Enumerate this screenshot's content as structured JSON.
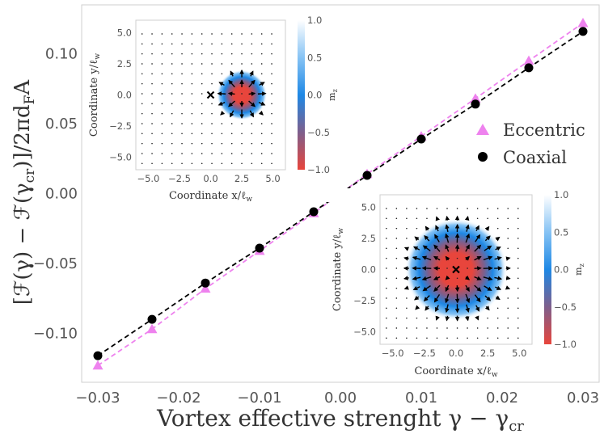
{
  "chart_data": {
    "type": "line",
    "ylabel": "[ℱ(γ) − ℱ(γ_cr)]/2πd_F A",
    "ylabel_parts": {
      "a": "[ℱ(γ) − ℱ(γ",
      "a_sub": "cr",
      "b": ")]/2πd",
      "b_sub": "F",
      "c": "A"
    },
    "xlabel": "Vortex effective strenght γ − γ_cr",
    "xlabel_parts": {
      "a": "Vortex effective strenght γ − γ",
      "a_sub": "cr"
    },
    "xlim": [
      -0.032,
      0.032
    ],
    "ylim": [
      -0.135,
      0.135
    ],
    "xticks": [
      -0.03,
      -0.02,
      -0.01,
      0.0,
      0.01,
      0.02,
      0.03
    ],
    "xtick_labels": [
      "−0.03",
      "−0.02",
      "−0.01",
      "0.00",
      "0.01",
      "0.02",
      "0.03"
    ],
    "yticks": [
      -0.1,
      -0.05,
      0.0,
      0.05,
      0.1
    ],
    "ytick_labels": [
      "−0.10",
      "−0.05",
      "0.00",
      "0.05",
      "0.10"
    ],
    "grid": false,
    "legend_position": "right",
    "x": [
      -0.03,
      -0.0233,
      -0.0167,
      -0.01,
      -0.0033,
      0.0,
      0.0033,
      0.01,
      0.0167,
      0.0233,
      0.03
    ],
    "series": [
      {
        "name": "Eccentric",
        "marker": "triangle",
        "color": "#EE82EE",
        "linestyle": "dashed",
        "values": [
          -0.123,
          -0.097,
          -0.068,
          -0.041,
          -0.014,
          0.0,
          0.014,
          0.041,
          0.068,
          0.095,
          0.122
        ]
      },
      {
        "name": "Coaxial",
        "marker": "circle",
        "color": "#000000",
        "linestyle": "dashed",
        "values": [
          -0.116,
          -0.09,
          -0.064,
          -0.039,
          -0.013,
          0.0,
          0.013,
          0.039,
          0.064,
          0.09,
          0.116
        ]
      }
    ],
    "insets": [
      {
        "name": "eccentric-inset",
        "xlabel": "Coordinate x/ℓ_w",
        "xlabel_parts": {
          "a": "Coordinate x/ℓ",
          "sub": "w"
        },
        "ylabel": "Coordinate y/ℓ_w",
        "ylabel_parts": {
          "a": "Coordinate y/ℓ",
          "sub": "w"
        },
        "xlim": [
          -6,
          6
        ],
        "ylim": [
          -6,
          6
        ],
        "xticks": [
          -5.0,
          -2.5,
          0.0,
          2.5,
          5.0
        ],
        "xtick_labels": [
          "−5.0",
          "−2.5",
          "0.0",
          "2.5",
          "5.0"
        ],
        "yticks": [
          -5.0,
          -2.5,
          0.0,
          2.5,
          5.0
        ],
        "ytick_labels": [
          "−5.0",
          "−2.5",
          "0.0",
          "2.5",
          "5.0"
        ],
        "skyrmion_center": [
          2.5,
          0.0
        ],
        "skyrmion_radius": 1.3,
        "cross_marker": [
          0.0,
          0.0
        ],
        "colorbar": {
          "label": "m_z",
          "label_parts": {
            "a": "m",
            "sub": "z"
          },
          "range": [
            -1.0,
            1.0
          ],
          "ticks": [
            1.0,
            0.5,
            0.0,
            -0.5,
            -1.0
          ],
          "tick_labels": [
            "1.0",
            "0.5",
            "0.0",
            "−0.5",
            "−1.0"
          ]
        }
      },
      {
        "name": "coaxial-inset",
        "xlabel": "Coordinate x/ℓ_w",
        "xlabel_parts": {
          "a": "Coordinate x/ℓ",
          "sub": "w"
        },
        "ylabel": "Coordinate y/ℓ_w",
        "ylabel_parts": {
          "a": "Coordinate y/ℓ",
          "sub": "w"
        },
        "xlim": [
          -6,
          6
        ],
        "ylim": [
          -6,
          6
        ],
        "xticks": [
          -5.0,
          -2.5,
          0.0,
          2.5,
          5.0
        ],
        "xtick_labels": [
          "−5.0",
          "−2.5",
          "0.0",
          "2.5",
          "5.0"
        ],
        "yticks": [
          -5.0,
          -2.5,
          0.0,
          2.5,
          5.0
        ],
        "ytick_labels": [
          "−5.0",
          "−2.5",
          "0.0",
          "2.5",
          "5.0"
        ],
        "skyrmion_center": [
          0.0,
          0.0
        ],
        "skyrmion_radius": 2.6,
        "cross_marker": [
          0.0,
          0.0
        ],
        "colorbar": {
          "label": "m_z",
          "label_parts": {
            "a": "m",
            "sub": "z"
          },
          "range": [
            -1.0,
            1.0
          ],
          "ticks": [
            1.0,
            0.5,
            0.0,
            -0.5,
            -1.0
          ],
          "tick_labels": [
            "1.0",
            "0.5",
            "0.0",
            "−0.5",
            "−1.0"
          ]
        }
      }
    ]
  }
}
